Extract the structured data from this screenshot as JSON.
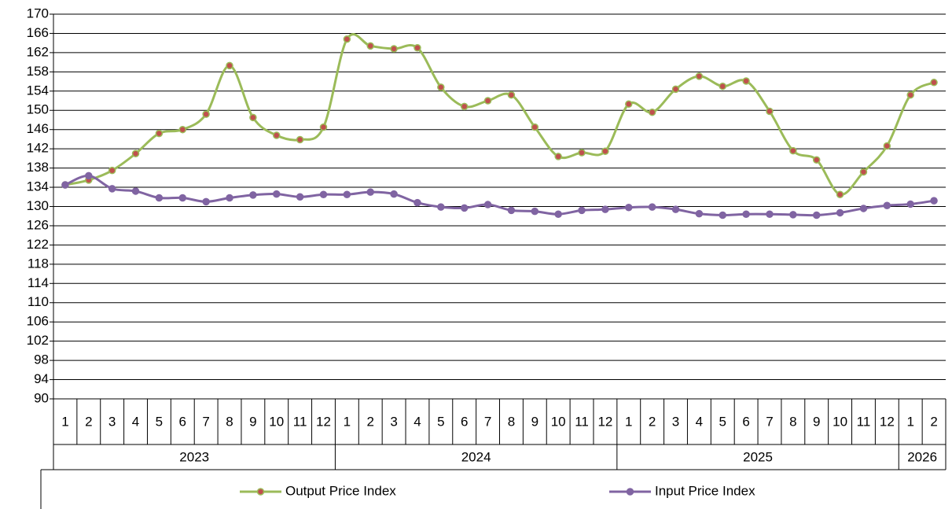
{
  "chart_data": {
    "type": "line",
    "groups": [
      {
        "name": "2023",
        "categories": [
          "1",
          "2",
          "3",
          "4",
          "5",
          "6",
          "7",
          "8",
          "9",
          "10",
          "11",
          "12"
        ]
      },
      {
        "name": "2024",
        "categories": [
          "1",
          "2",
          "3",
          "4",
          "5",
          "6",
          "7",
          "8",
          "9",
          "10",
          "11",
          "12"
        ]
      },
      {
        "name": "2025",
        "categories": [
          "1",
          "2",
          "3",
          "4",
          "5",
          "6",
          "7",
          "8",
          "9",
          "10",
          "11",
          "12"
        ]
      },
      {
        "name": "2026",
        "categories": [
          "1",
          "2"
        ]
      }
    ],
    "series": [
      {
        "name": "Output Price Index",
        "color": "#9bbb59",
        "marker_color": "#c0504d",
        "values": [
          134.5,
          135.5,
          137.5,
          141,
          145.2,
          146,
          149.2,
          159.3,
          148.5,
          144.8,
          143.9,
          146.5,
          164.8,
          163.4,
          162.8,
          163,
          154.8,
          150.8,
          152,
          153.2,
          146.5,
          140.4,
          141.2,
          141.5,
          151.3,
          149.6,
          154.4,
          157.1,
          155,
          156.1,
          149.8,
          141.6,
          139.7,
          132.5,
          137.2,
          142.6,
          153.2,
          155.8
        ]
      },
      {
        "name": "Input Price Index",
        "color": "#8064a2",
        "marker_color": "#8064a2",
        "values": [
          134.5,
          136.4,
          133.7,
          133.2,
          131.8,
          131.8,
          131,
          131.8,
          132.4,
          132.6,
          132,
          132.5,
          132.5,
          133,
          132.6,
          130.8,
          129.9,
          129.7,
          130.4,
          129.2,
          129,
          128.4,
          129.2,
          129.4,
          129.8,
          129.9,
          129.4,
          128.5,
          128.2,
          128.4,
          128.4,
          128.3,
          128.2,
          128.7,
          129.6,
          130.2,
          130.5,
          131.2
        ]
      }
    ],
    "ylim": [
      90,
      170
    ],
    "yticks": [
      90,
      94,
      98,
      102,
      106,
      110,
      114,
      118,
      122,
      126,
      130,
      134,
      138,
      142,
      146,
      150,
      154,
      158,
      162,
      166,
      170
    ],
    "grid": true,
    "smooth": true
  }
}
